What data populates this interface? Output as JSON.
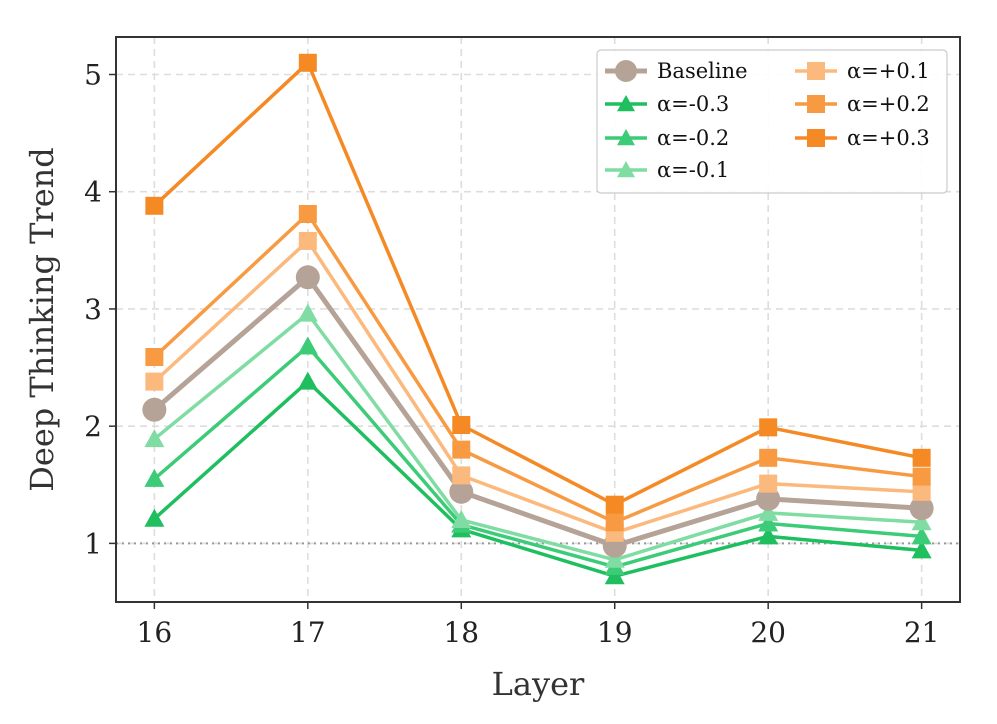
{
  "chart_data": {
    "type": "line",
    "title": "",
    "xlabel": "Layer",
    "ylabel": "Deep Thinking Trend",
    "x": [
      16,
      17,
      18,
      19,
      20,
      21
    ],
    "xlim": [
      15.75,
      21.25
    ],
    "ylim": [
      0.5,
      5.32
    ],
    "yticks": [
      1,
      2,
      3,
      4,
      5
    ],
    "grid": true,
    "reference_line": 1.0,
    "legend_position": "top-right",
    "series": [
      {
        "name": "Baseline",
        "values": [
          2.14,
          3.27,
          1.44,
          0.98,
          1.38,
          1.3
        ],
        "color": "#b5a397",
        "marker": "circle"
      },
      {
        "name": "α=-0.3",
        "values": [
          1.21,
          2.38,
          1.12,
          0.72,
          1.06,
          0.94
        ],
        "color": "#1fbf5f",
        "marker": "triangle"
      },
      {
        "name": "α=-0.2",
        "values": [
          1.55,
          2.68,
          1.16,
          0.8,
          1.17,
          1.06
        ],
        "color": "#3ccc78",
        "marker": "triangle"
      },
      {
        "name": "α=-0.1",
        "values": [
          1.89,
          2.96,
          1.2,
          0.86,
          1.26,
          1.18
        ],
        "color": "#7fdca2",
        "marker": "triangle"
      },
      {
        "name": "α=+0.1",
        "values": [
          2.38,
          3.58,
          1.58,
          1.09,
          1.51,
          1.44
        ],
        "color": "#fbb97d",
        "marker": "square"
      },
      {
        "name": "α=+0.2",
        "values": [
          2.59,
          3.81,
          1.8,
          1.18,
          1.73,
          1.57
        ],
        "color": "#f79a42",
        "marker": "square"
      },
      {
        "name": "α=+0.3",
        "values": [
          3.88,
          5.1,
          2.01,
          1.33,
          1.99,
          1.73
        ],
        "color": "#f58a24",
        "marker": "square"
      }
    ]
  }
}
